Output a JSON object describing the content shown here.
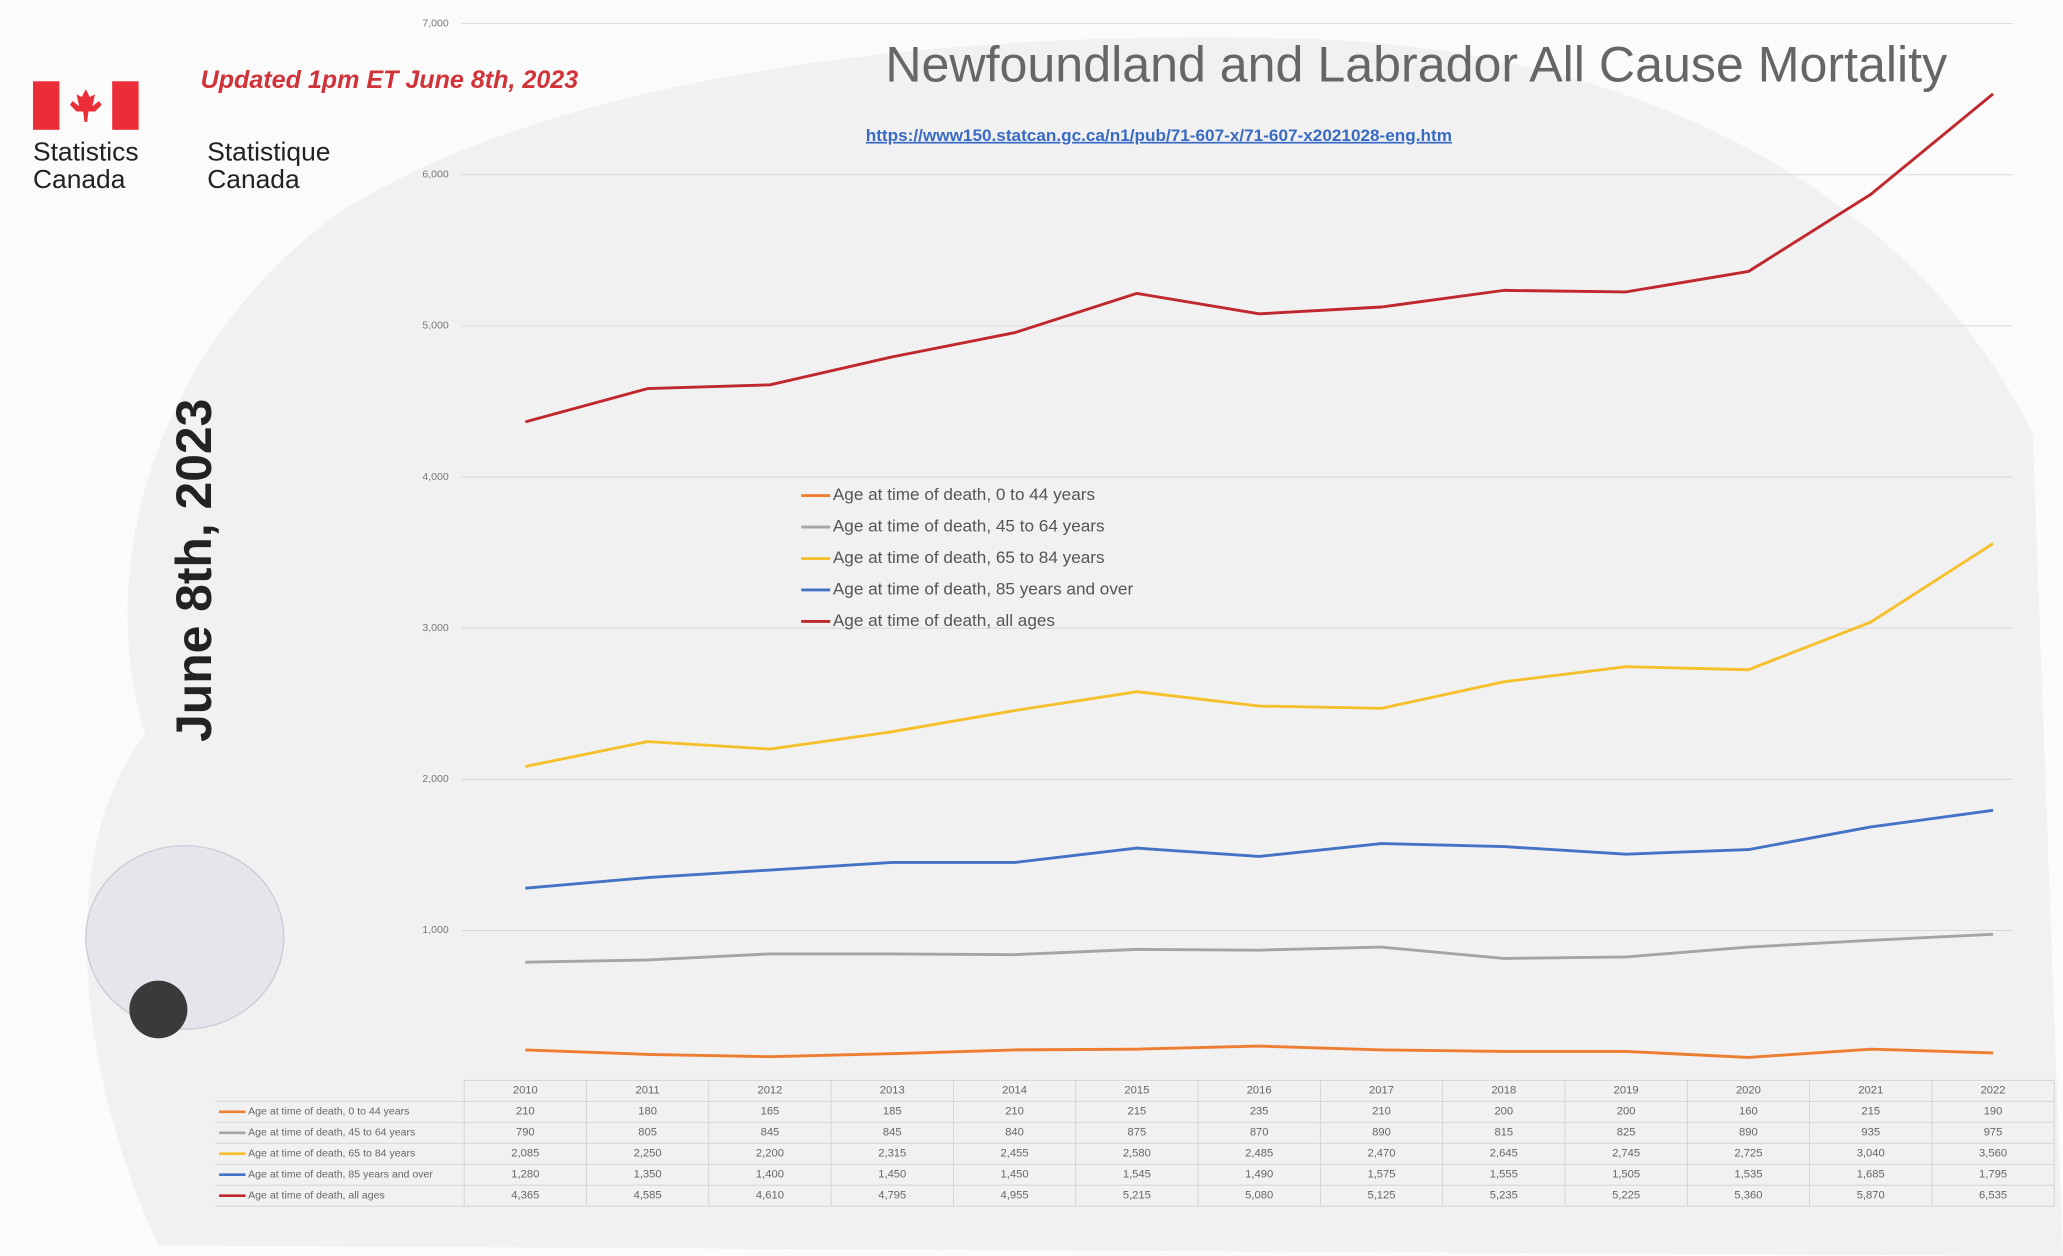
{
  "page": {
    "updated": "Updated 1pm ET June 8th, 2023",
    "agency_en": [
      "Statistics",
      "Canada"
    ],
    "agency_fr": [
      "Statistique",
      "Canada"
    ],
    "side_date": "June 8th, 2023"
  },
  "chart_data": {
    "type": "line",
    "title": "Newfoundland and Labrador All Cause Mortality",
    "source": "https://www150.statcan.gc.ca/n1/pub/71-607-x/71-607-x2021028-eng.htm",
    "categories": [
      "2010",
      "2011",
      "2012",
      "2013",
      "2014",
      "2015",
      "2016",
      "2017",
      "2018",
      "2019",
      "2020",
      "2021",
      "2022"
    ],
    "ylim": [
      0,
      7000
    ],
    "yticks": [
      {
        "value": 1000,
        "label": "1,000"
      },
      {
        "value": 2000,
        "label": "2,000"
      },
      {
        "value": 3000,
        "label": "3,000"
      },
      {
        "value": 4000,
        "label": "4,000"
      },
      {
        "value": 5000,
        "label": "5,000"
      },
      {
        "value": 6000,
        "label": "6,000"
      },
      {
        "value": 7000,
        "label": "7,000"
      }
    ],
    "grid": true,
    "series": [
      {
        "name": "Age at time of death, 0 to 44 years",
        "color": "#ed7d31",
        "values": [
          210,
          180,
          165,
          185,
          210,
          215,
          235,
          210,
          200,
          200,
          160,
          215,
          190
        ],
        "value_labels": [
          "210",
          "180",
          "165",
          "185",
          "210",
          "215",
          "235",
          "210",
          "200",
          "200",
          "160",
          "215",
          "190"
        ]
      },
      {
        "name": "Age at time of death, 45 to 64 years",
        "color": "#a5a5a5",
        "values": [
          790,
          805,
          845,
          845,
          840,
          875,
          870,
          890,
          815,
          825,
          890,
          935,
          975
        ],
        "value_labels": [
          "790",
          "805",
          "845",
          "845",
          "840",
          "875",
          "870",
          "890",
          "815",
          "825",
          "890",
          "935",
          "975"
        ]
      },
      {
        "name": "Age at time of death, 65 to 84 years",
        "color": "#f5c02c",
        "values": [
          2085,
          2250,
          2200,
          2315,
          2455,
          2580,
          2485,
          2470,
          2645,
          2745,
          2725,
          3040,
          3560
        ],
        "value_labels": [
          "2,085",
          "2,250",
          "2,200",
          "2,315",
          "2,455",
          "2,580",
          "2,485",
          "2,470",
          "2,645",
          "2,745",
          "2,725",
          "3,040",
          "3,560"
        ]
      },
      {
        "name": "Age at time of death, 85 years and over",
        "color": "#4472c4",
        "values": [
          1280,
          1350,
          1400,
          1450,
          1450,
          1545,
          1490,
          1575,
          1555,
          1505,
          1535,
          1685,
          1795
        ],
        "value_labels": [
          "1,280",
          "1,350",
          "1,400",
          "1,450",
          "1,450",
          "1,545",
          "1,490",
          "1,575",
          "1,555",
          "1,505",
          "1,535",
          "1,685",
          "1,795"
        ]
      },
      {
        "name": "Age at time of death, all ages",
        "color": "#c0282d",
        "values": [
          4365,
          4585,
          4610,
          4795,
          4955,
          5215,
          5080,
          5125,
          5235,
          5225,
          5360,
          5870,
          6535
        ],
        "value_labels": [
          "4,365",
          "4,585",
          "4,610",
          "4,795",
          "4,955",
          "5,215",
          "5,080",
          "5,125",
          "5,235",
          "5,225",
          "5,360",
          "5,870",
          "6,535"
        ]
      }
    ]
  }
}
